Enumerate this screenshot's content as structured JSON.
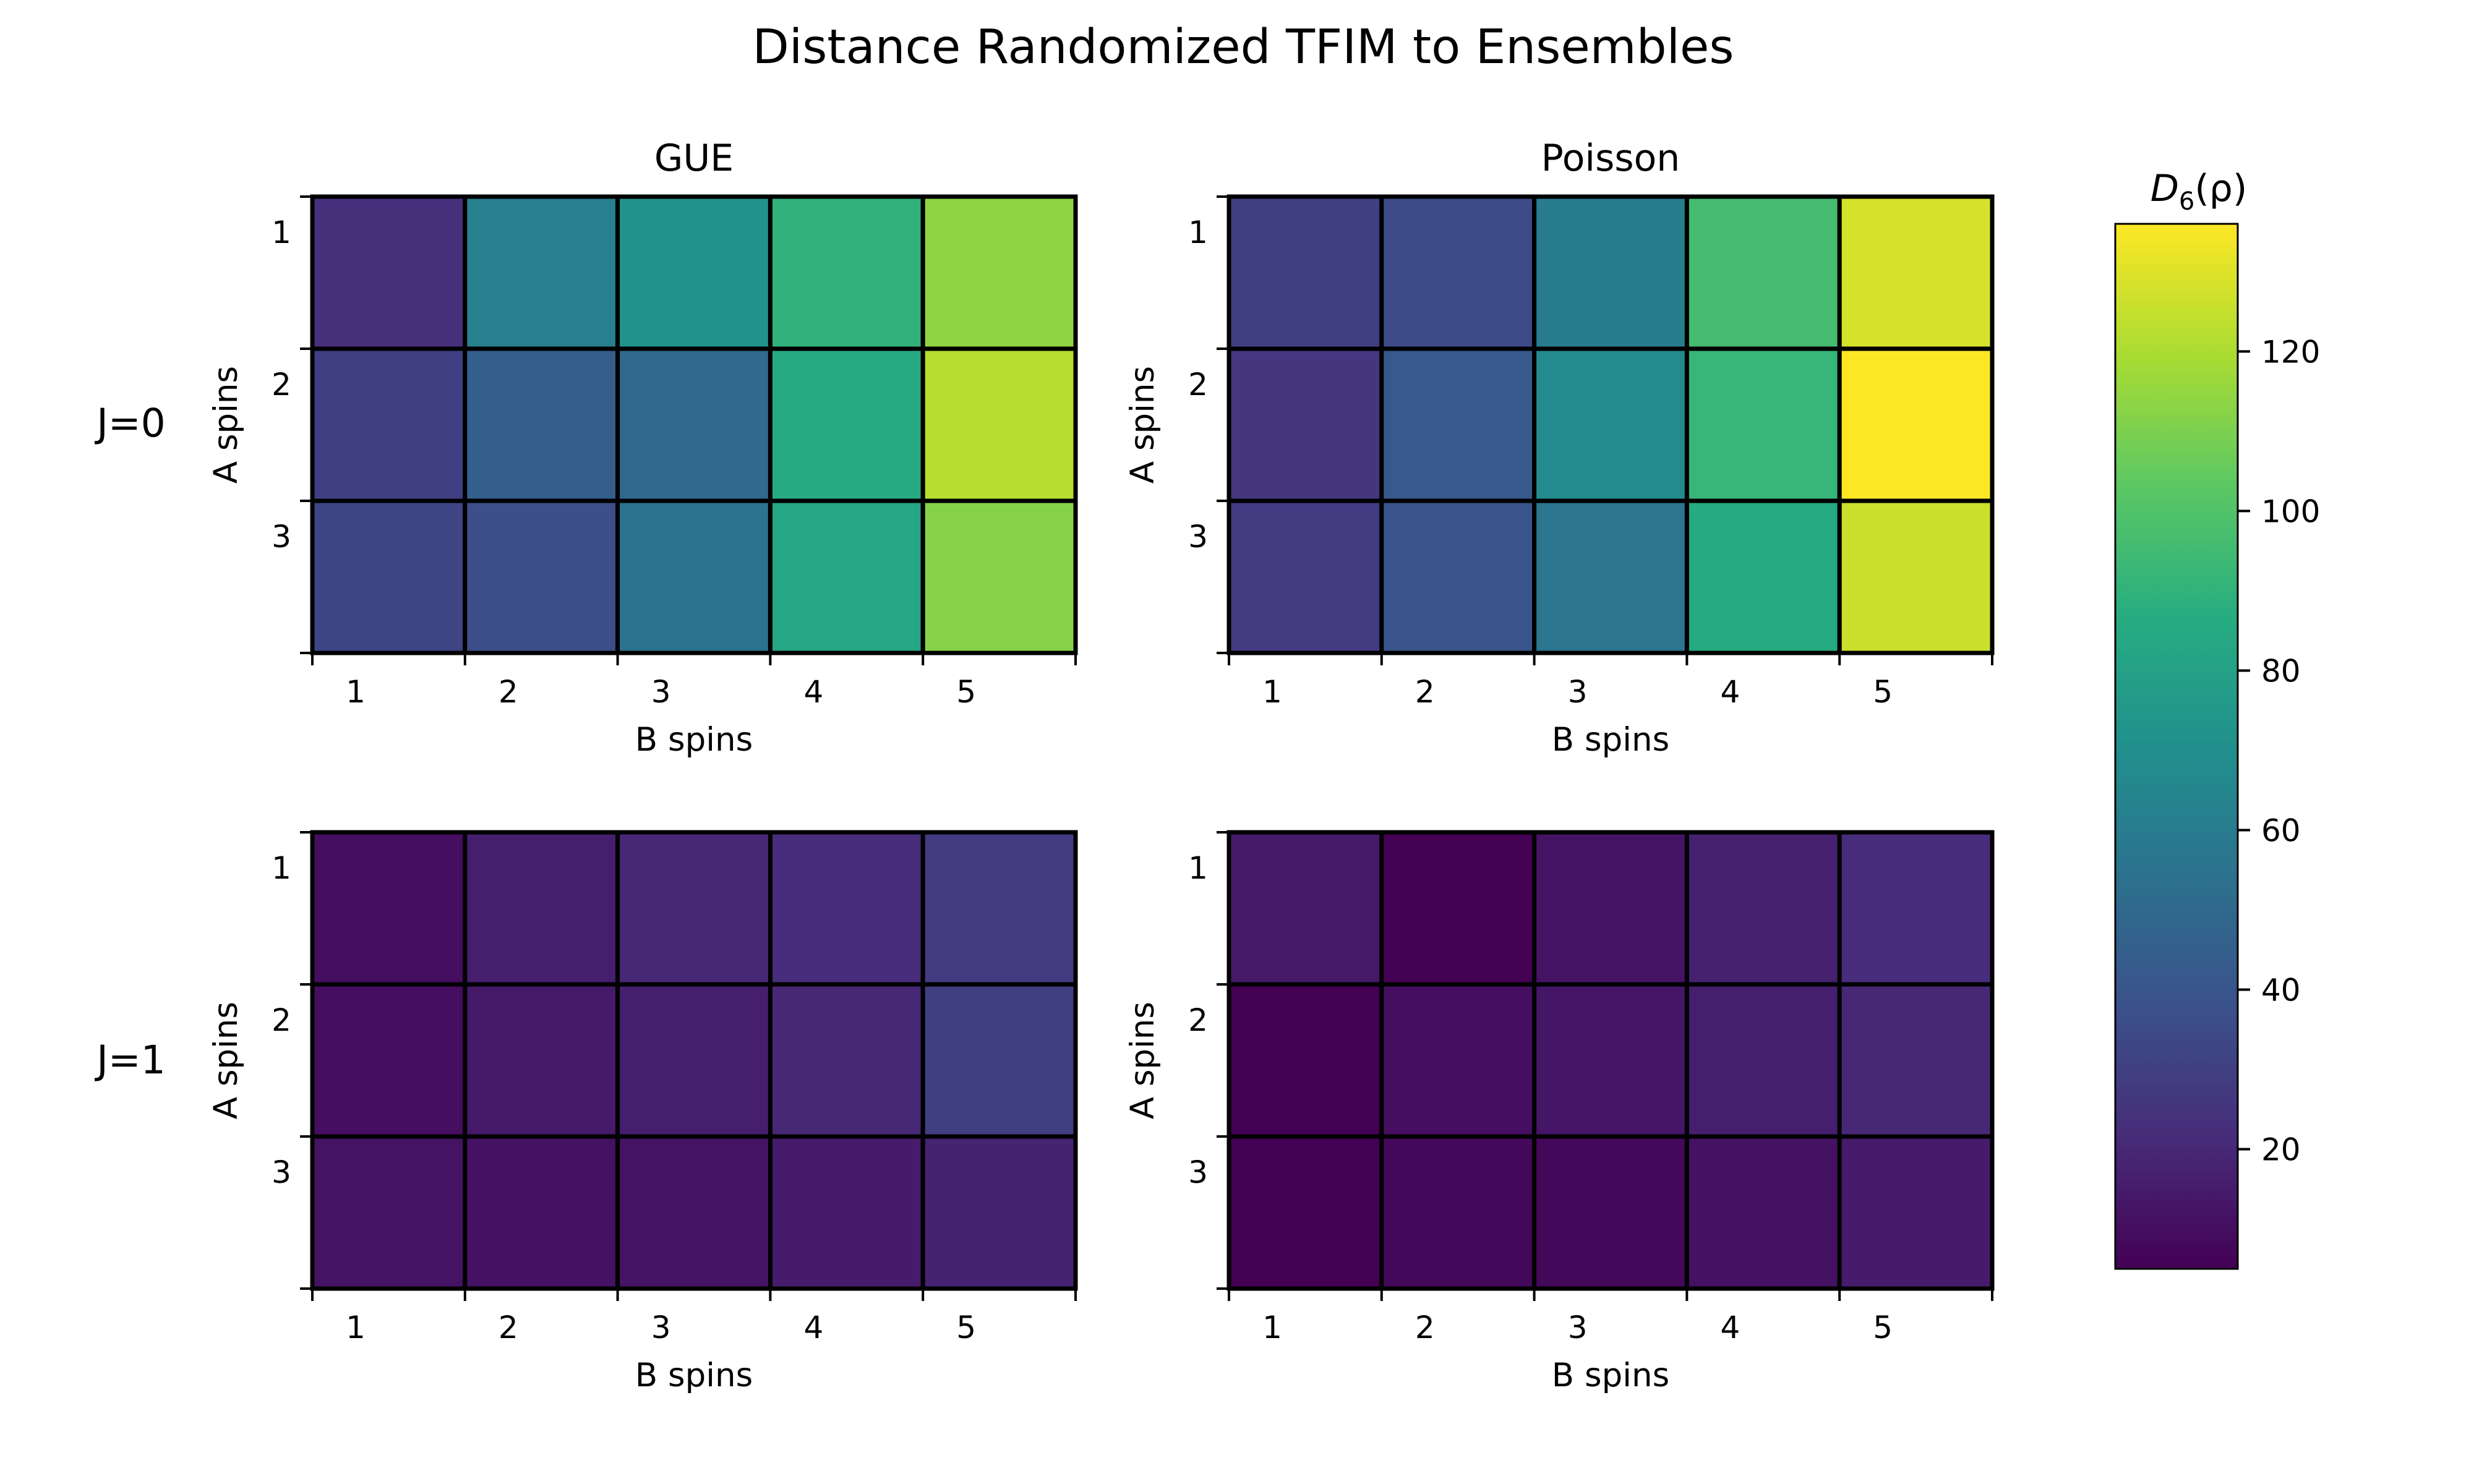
{
  "chart_data": {
    "type": "heatmap",
    "title": "Distance Randomized TFIM to Ensembles",
    "columns": [
      "GUE",
      "Poisson"
    ],
    "rows": [
      "J=0",
      "J=1"
    ],
    "xlabel": "B spins",
    "ylabel": "A spins",
    "x_ticks": [
      "1",
      "2",
      "3",
      "4",
      "5"
    ],
    "y_ticks": [
      "1",
      "2",
      "3"
    ],
    "colormap": "viridis",
    "colorbar": {
      "label": "D6(ρ)",
      "label_base": "D",
      "label_sub": "6",
      "label_rest": "(ρ)",
      "range": [
        5,
        136
      ],
      "ticks": [
        20,
        40,
        60,
        80,
        100,
        120
      ]
    },
    "panels": [
      {
        "row": "J=0",
        "column": "GUE",
        "values": [
          [
            23,
            62,
            72,
            90,
            114
          ],
          [
            30,
            45,
            50,
            85,
            122
          ],
          [
            32,
            37,
            55,
            83,
            112
          ]
        ]
      },
      {
        "row": "J=0",
        "column": "Poisson",
        "values": [
          [
            30,
            35,
            60,
            96,
            128
          ],
          [
            26,
            42,
            68,
            92,
            136
          ],
          [
            28,
            40,
            56,
            85,
            126
          ]
        ]
      },
      {
        "row": "J=1",
        "column": "GUE",
        "values": [
          [
            10,
            16,
            20,
            22,
            28
          ],
          [
            10,
            14,
            16,
            20,
            30
          ],
          [
            12,
            11,
            12,
            15,
            18
          ]
        ]
      },
      {
        "row": "J=1",
        "column": "Poisson",
        "values": [
          [
            14,
            5,
            12,
            17,
            22
          ],
          [
            5,
            10,
            13,
            16,
            20
          ],
          [
            5,
            8,
            8,
            11,
            15
          ]
        ]
      }
    ]
  }
}
